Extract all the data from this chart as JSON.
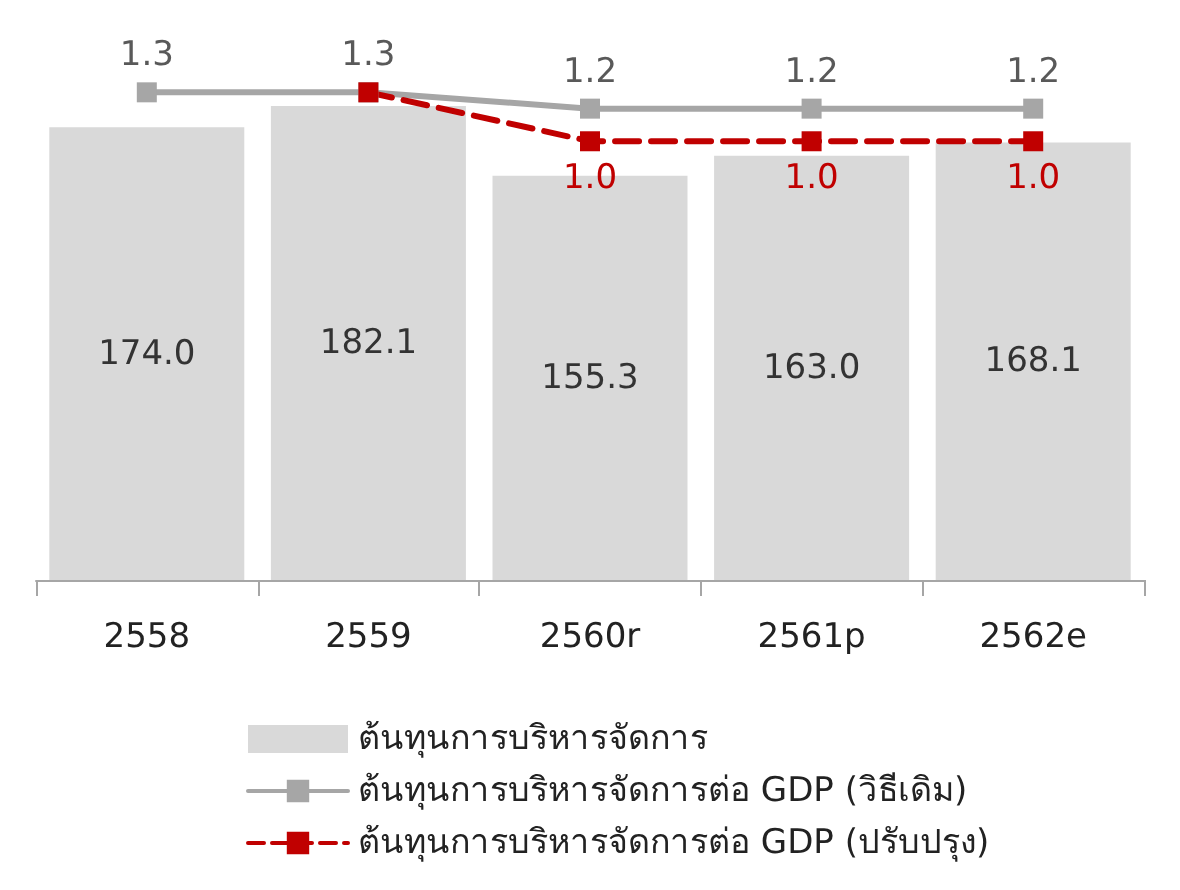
{
  "chart_data": {
    "type": "bar",
    "categories": [
      "2558",
      "2559",
      "2560r",
      "2561p",
      "2562e"
    ],
    "series": [
      {
        "name": "ต้นทุนการบริหารจัดการ",
        "color": "#d9d9d9",
        "values": [
          174.0,
          182.1,
          155.3,
          163.0,
          168.1
        ],
        "value_labels": [
          "174.0",
          "182.1",
          "155.3",
          "163.0",
          "168.1"
        ]
      },
      {
        "type": "line",
        "axis": "y2",
        "name": "ต้นทุนการบริหารจัดการต่อ GDP (วิธีเดิม)",
        "color": "#a6a6a6",
        "values": [
          1.3,
          1.3,
          1.2,
          1.2,
          1.2
        ],
        "value_labels": [
          "1.3",
          "1.3",
          "1.2",
          "1.2",
          "1.2"
        ],
        "line_style": "solid"
      },
      {
        "type": "line",
        "axis": "y2",
        "name": "ต้นทุนการบริหารจัดการต่อ GDP (ปรับปรุง)",
        "color": "#c00000",
        "values": [
          null,
          1.3,
          1.0,
          1.0,
          1.0
        ],
        "value_labels": [
          null,
          null,
          "1.0",
          "1.0",
          "1.0"
        ],
        "line_style": "dashed"
      }
    ],
    "tick_labels": "x",
    "marker": "square",
    "legend": "bottom",
    "grid": false
  }
}
